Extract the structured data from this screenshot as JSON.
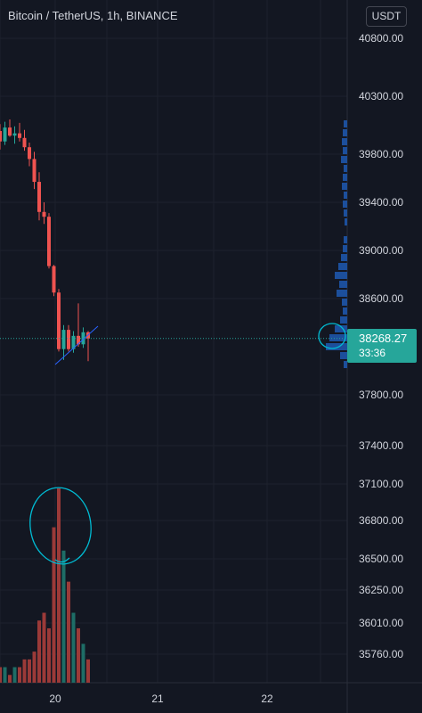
{
  "header": {
    "title": "Bitcoin / TetherUS, 1h, BINANCE",
    "currency_button": "USDT"
  },
  "current_price": {
    "price": "38268.27",
    "countdown": "33:36"
  },
  "colors": {
    "background": "#131722",
    "up": "#26a69a",
    "down": "#ef5350",
    "volume_profile": "#2962ff",
    "annotation": "#00bcd4"
  },
  "chart_data": {
    "type": "candlestick",
    "symbol": "BTC/USDT",
    "interval": "1h",
    "exchange": "BINANCE",
    "x_ticks": [
      "20",
      "21",
      "22"
    ],
    "y_ticks": [
      40800,
      40300,
      39800,
      39400,
      39000,
      38600,
      37800,
      37400,
      37100,
      36800,
      36500,
      36250,
      36010,
      35760
    ],
    "y_tick_labels": [
      "40800.00",
      "40300.00",
      "39800.00",
      "39400.00",
      "39000.00",
      "38600.00",
      "37800.00",
      "37400.00",
      "37100.00",
      "36800.00",
      "36500.00",
      "36250.00",
      "36010.00",
      "35760.00"
    ],
    "last_price": 38268.27,
    "candles": [
      {
        "o": 40000,
        "h": 40060,
        "l": 39840,
        "c": 39910
      },
      {
        "o": 39910,
        "h": 40080,
        "l": 39880,
        "c": 40030
      },
      {
        "o": 40030,
        "h": 40100,
        "l": 39950,
        "c": 39960
      },
      {
        "o": 39960,
        "h": 40040,
        "l": 39890,
        "c": 39980
      },
      {
        "o": 39980,
        "h": 40070,
        "l": 39910,
        "c": 39940
      },
      {
        "o": 39940,
        "h": 40010,
        "l": 39830,
        "c": 39860
      },
      {
        "o": 39860,
        "h": 39900,
        "l": 39700,
        "c": 39760
      },
      {
        "o": 39760,
        "h": 39820,
        "l": 39510,
        "c": 39570
      },
      {
        "o": 39570,
        "h": 39650,
        "l": 39250,
        "c": 39320
      },
      {
        "o": 39320,
        "h": 39400,
        "l": 39220,
        "c": 39280
      },
      {
        "o": 39280,
        "h": 39310,
        "l": 38850,
        "c": 38870
      },
      {
        "o": 38870,
        "h": 38880,
        "l": 38620,
        "c": 38650
      },
      {
        "o": 38650,
        "h": 38680,
        "l": 38160,
        "c": 38180
      },
      {
        "o": 38180,
        "h": 38380,
        "l": 38090,
        "c": 38340
      },
      {
        "o": 38340,
        "h": 38380,
        "l": 38160,
        "c": 38180
      },
      {
        "o": 38180,
        "h": 38330,
        "l": 38150,
        "c": 38290
      },
      {
        "o": 38290,
        "h": 38560,
        "l": 38200,
        "c": 38220
      },
      {
        "o": 38220,
        "h": 38360,
        "l": 38190,
        "c": 38320
      },
      {
        "o": 38320,
        "h": 38330,
        "l": 38080,
        "c": 38268.27
      }
    ],
    "volume": [
      2,
      2,
      1,
      2,
      2,
      3,
      3,
      4,
      8,
      9,
      7,
      20,
      25,
      17,
      13,
      9,
      7,
      5,
      3
    ]
  }
}
